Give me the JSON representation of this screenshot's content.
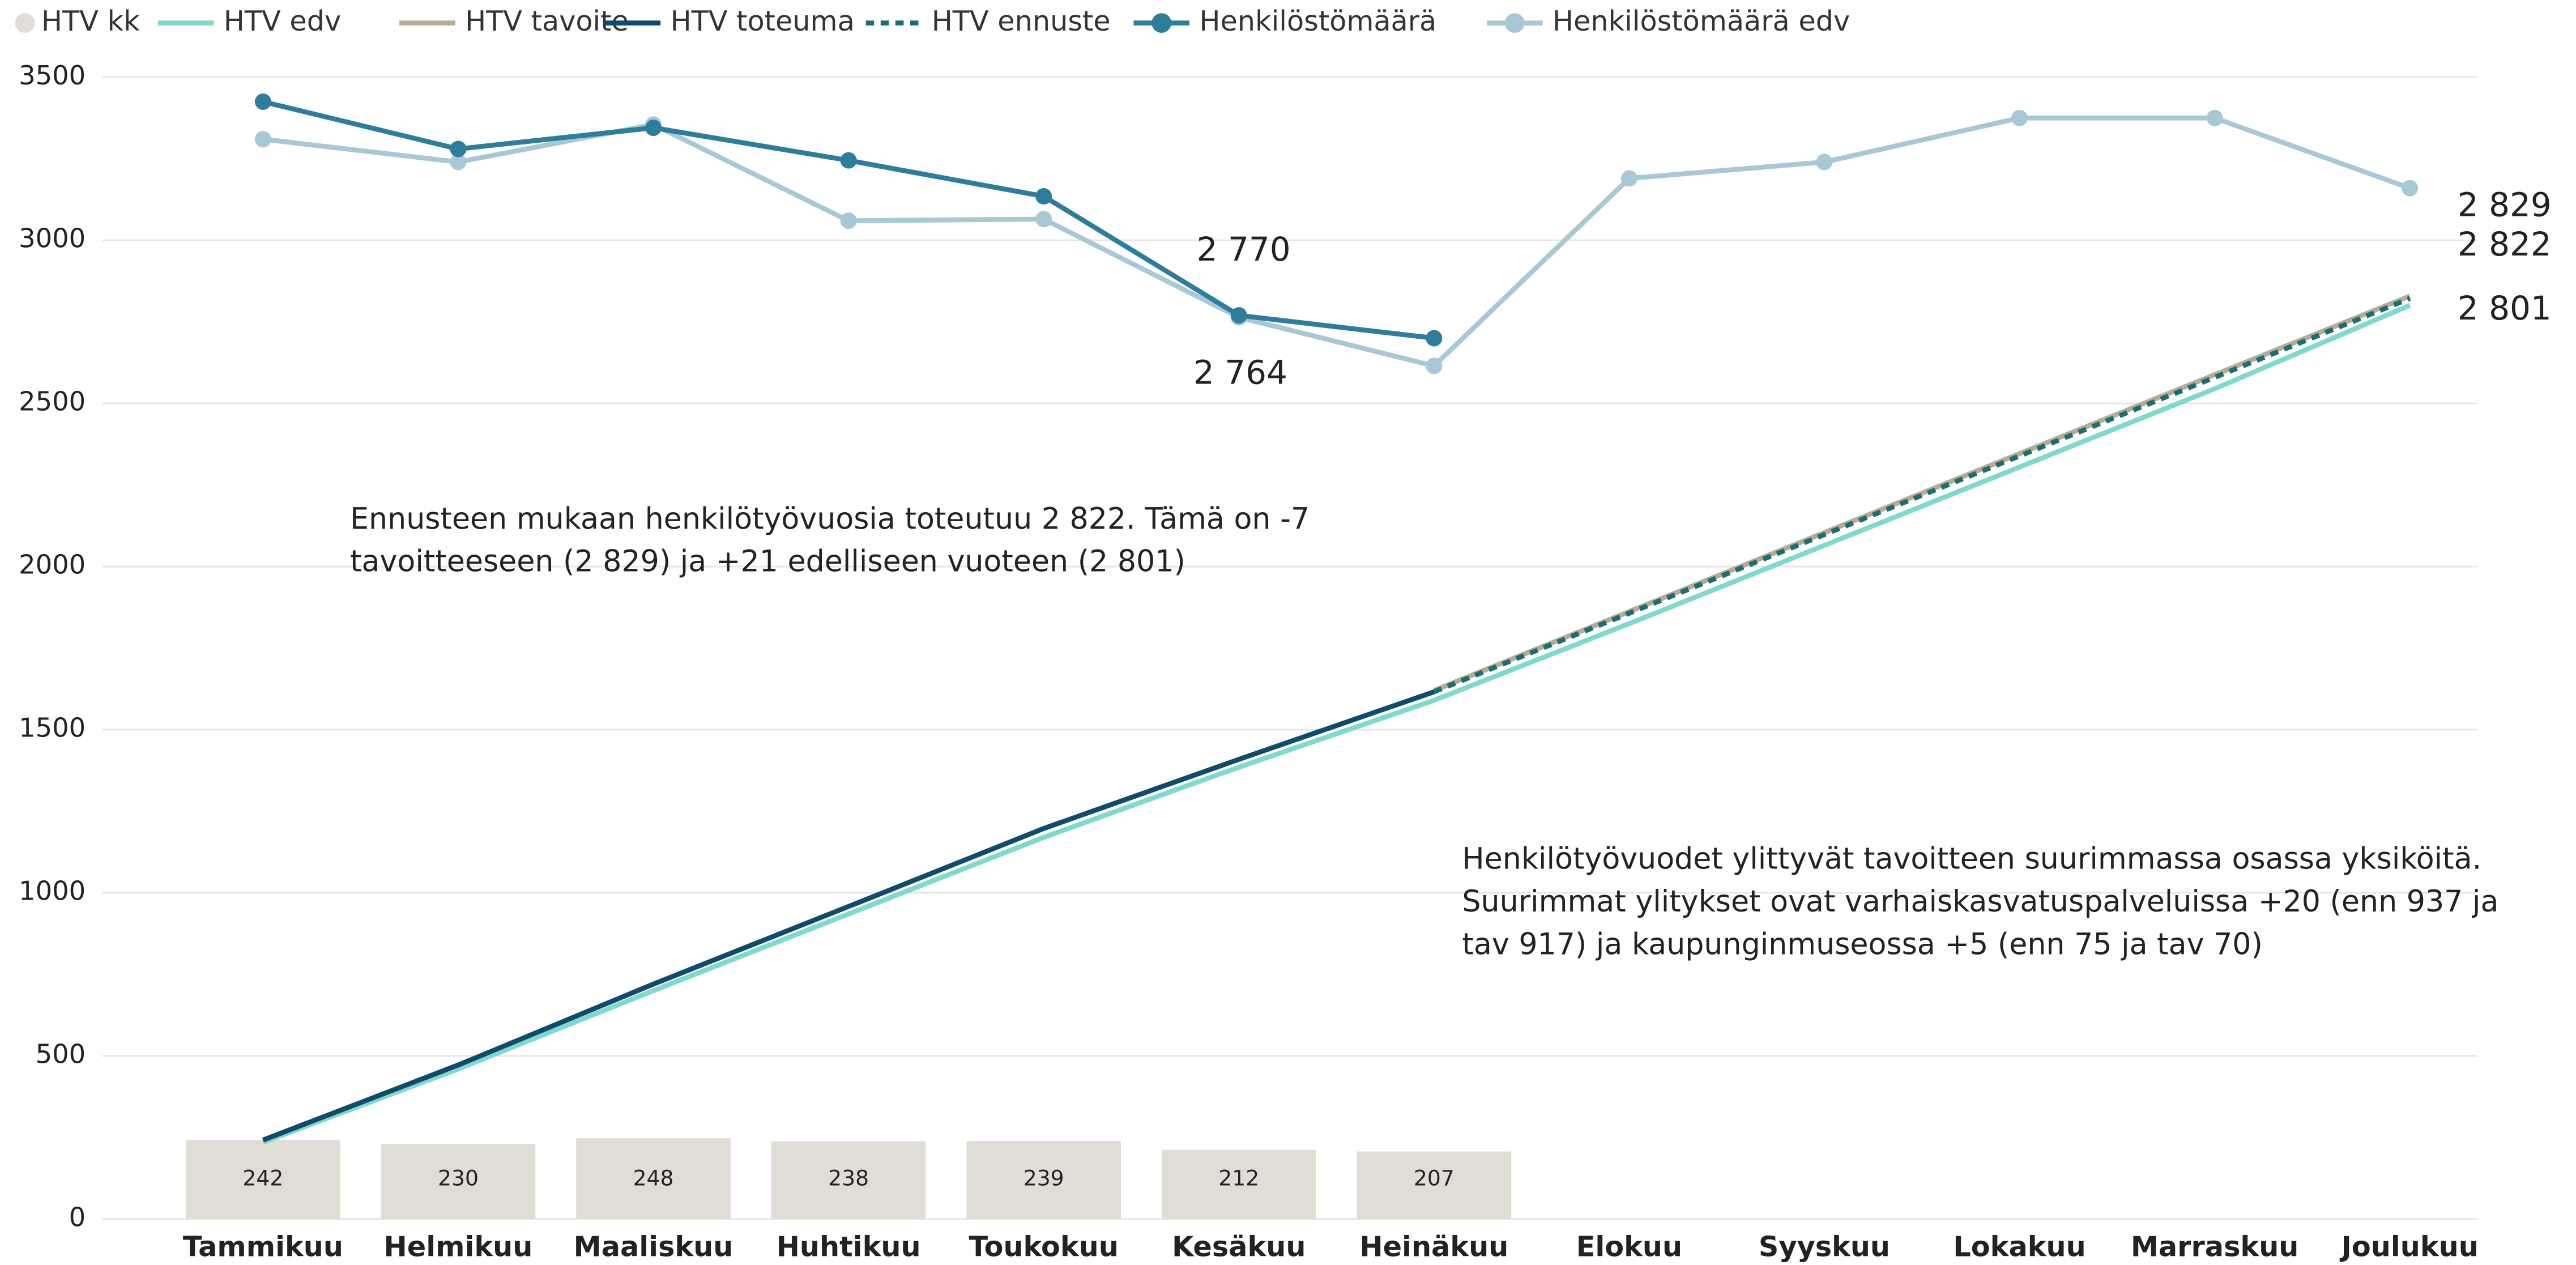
{
  "chart_data": {
    "type": "combo",
    "categories": [
      "Tammikuu",
      "Helmikuu",
      "Maaliskuu",
      "Huhtikuu",
      "Toukokuu",
      "Kesäkuu",
      "Heinäkuu",
      "Elokuu",
      "Syyskuu",
      "Lokakuu",
      "Marraskuu",
      "Joulukuu"
    ],
    "ylim": [
      0,
      3500
    ],
    "yticks": [
      0,
      500,
      1000,
      1500,
      2000,
      2500,
      3000,
      3500
    ],
    "grid": true,
    "legend": "top",
    "series": [
      {
        "name": "HTV kk",
        "kind": "bar",
        "color": "#e0ddd6",
        "values": [
          242,
          230,
          248,
          238,
          239,
          212,
          207,
          null,
          null,
          null,
          null,
          null
        ]
      },
      {
        "name": "HTV edv",
        "kind": "line",
        "color": "#7fd9cc",
        "values": [
          235,
          460,
          700,
          935,
          1170,
          1385,
          1590,
          1825,
          2065,
          2305,
          2545,
          2801
        ],
        "value_labels": [
          null,
          null,
          null,
          null,
          null,
          null,
          null,
          null,
          null,
          null,
          null,
          "2 801"
        ]
      },
      {
        "name": "HTV tavoite",
        "kind": "line",
        "color": "#b8ab95",
        "values": [
          null,
          null,
          null,
          null,
          null,
          null,
          1620,
          1862,
          2104,
          2346,
          2588,
          2829
        ],
        "value_labels": [
          null,
          null,
          null,
          null,
          null,
          null,
          null,
          null,
          null,
          null,
          null,
          "2 829"
        ]
      },
      {
        "name": "HTV toteuma",
        "kind": "line",
        "color": "#114b6b",
        "values": [
          242,
          472,
          720,
          958,
          1197,
          1409,
          1616,
          null,
          null,
          null,
          null,
          null
        ]
      },
      {
        "name": "HTV ennuste",
        "kind": "dashed",
        "color": "#1a6f73",
        "values": [
          null,
          null,
          null,
          null,
          null,
          null,
          1616,
          1857,
          2098,
          2339,
          2580,
          2822
        ],
        "value_labels": [
          null,
          null,
          null,
          null,
          null,
          null,
          null,
          null,
          null,
          null,
          null,
          "2 822"
        ]
      },
      {
        "name": "Henkilöstömäärä",
        "kind": "marker",
        "color": "#2e7d9a",
        "values": [
          3425,
          3280,
          3345,
          3245,
          3135,
          2770,
          2700,
          null,
          null,
          null,
          null,
          null
        ],
        "value_labels": [
          null,
          null,
          null,
          null,
          null,
          "2 770",
          null,
          null,
          null,
          null,
          null,
          null
        ]
      },
      {
        "name": "Henkilöstömäärä edv",
        "kind": "marker",
        "color": "#a8c8d6",
        "values": [
          3310,
          3240,
          3355,
          3060,
          3065,
          2764,
          2615,
          3190,
          3240,
          3375,
          3375,
          3160
        ],
        "value_labels": [
          null,
          null,
          null,
          null,
          null,
          "2 764",
          null,
          null,
          null,
          null,
          null,
          null
        ]
      }
    ],
    "annotations": [
      [
        "Ennusteen mukaan henkilötyövuosia toteutuu 2 822. Tämä on -7",
        "tavoitteeseen (2 829) ja +21 edelliseen vuoteen (2 801)"
      ],
      [
        "Henkilötyövuodet ylittyvät tavoitteen suurimmassa osassa yksiköitä.",
        "Suurimmat ylitykset ovat varhaiskasvatuspalveluissa +20 (enn 937 ja",
        "tav 917) ja kaupunginmuseossa +5 (enn 75 ja tav 70)"
      ]
    ]
  }
}
